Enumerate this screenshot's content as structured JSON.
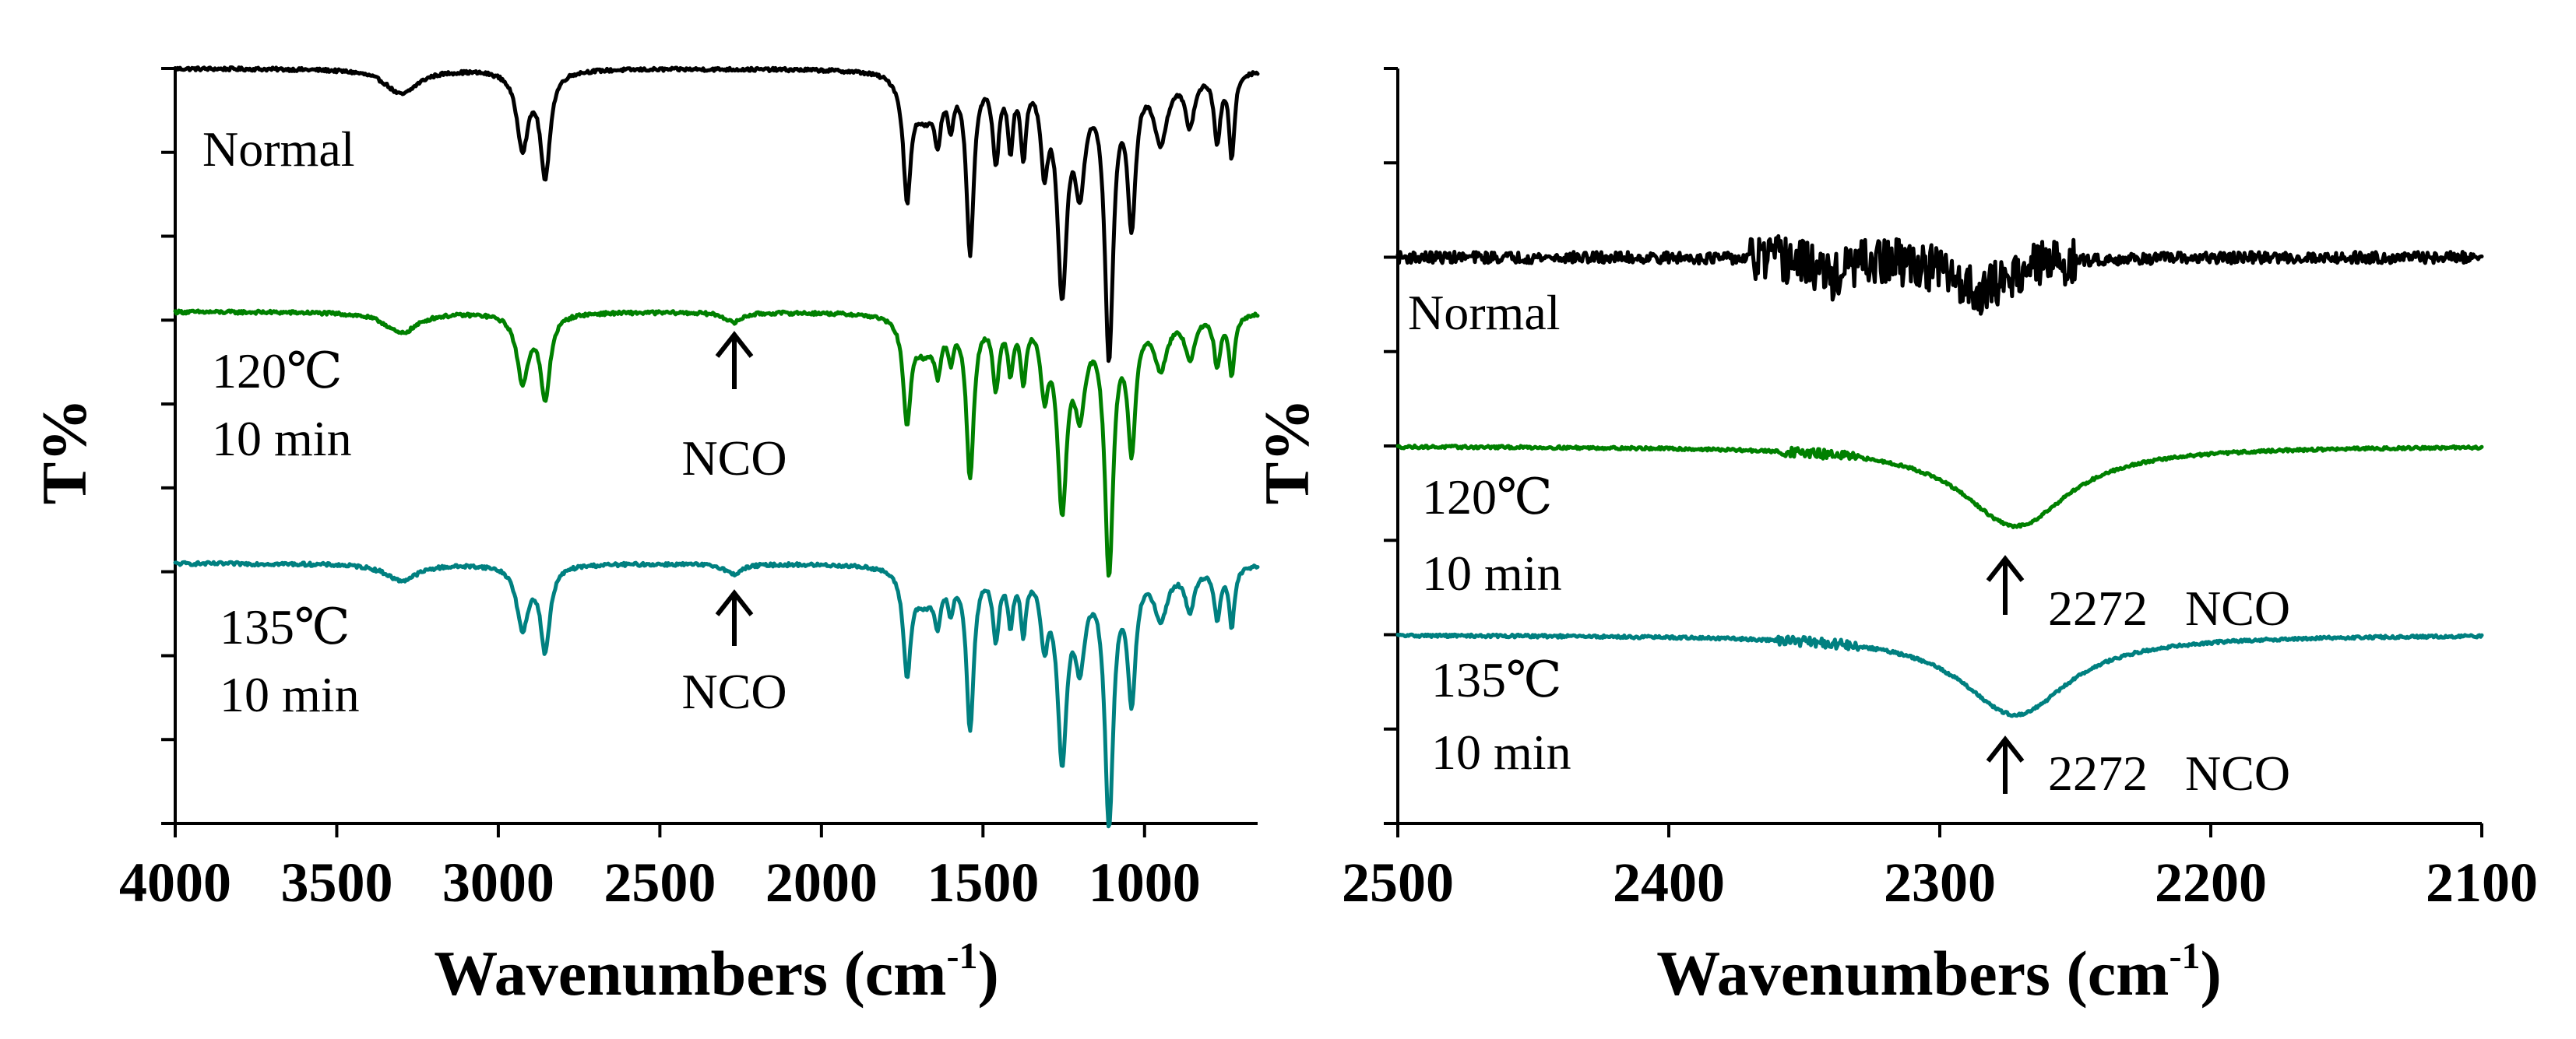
{
  "chart_data": [
    {
      "type": "line",
      "panel": "left",
      "xlabel": "Wavenumbers (cm",
      "xlabel_sup": "-1",
      "xlabel_close": ")",
      "ylabel": "T%",
      "xlim": [
        4000,
        650
      ],
      "x_ticks": [
        4000,
        3500,
        3000,
        2500,
        2000,
        1500,
        1000
      ],
      "x_tick_labels": [
        "4000",
        "3500",
        "3000",
        "2500",
        "2000",
        "1500",
        "1000"
      ],
      "ylim": [
        0,
        9
      ],
      "y_ticks": [
        0,
        1,
        2,
        3,
        4,
        5,
        6,
        7,
        8,
        9
      ],
      "y_tick_labels_shown": false,
      "series": [
        {
          "name": "Normal",
          "label_lines": [
            "Normal"
          ],
          "color": "#000000",
          "baseline": 9.0,
          "bands": [
            {
              "center": 3300,
              "width": 60,
              "depth": 0.3
            },
            {
              "center": 2925,
              "width": 22,
              "depth": 0.9
            },
            {
              "center": 2855,
              "width": 18,
              "depth": 1.25
            },
            {
              "center": 1735,
              "width": 14,
              "depth": 1.4
            },
            {
              "center": 1680,
              "width": 40,
              "depth": 0.5
            },
            {
              "center": 1640,
              "width": 12,
              "depth": 0.6
            },
            {
              "center": 1600,
              "width": 10,
              "depth": 0.5
            },
            {
              "center": 1540,
              "width": 14,
              "depth": 2.1
            },
            {
              "center": 1460,
              "width": 12,
              "depth": 1.0
            },
            {
              "center": 1415,
              "width": 10,
              "depth": 0.8
            },
            {
              "center": 1375,
              "width": 10,
              "depth": 0.9
            },
            {
              "center": 1310,
              "width": 14,
              "depth": 1.0
            },
            {
              "center": 1255,
              "width": 18,
              "depth": 2.5
            },
            {
              "center": 1200,
              "width": 20,
              "depth": 1.2
            },
            {
              "center": 1110,
              "width": 16,
              "depth": 3.3
            },
            {
              "center": 1040,
              "width": 15,
              "depth": 1.7
            },
            {
              "center": 950,
              "width": 25,
              "depth": 0.8
            },
            {
              "center": 860,
              "width": 18,
              "depth": 0.6
            },
            {
              "center": 775,
              "width": 12,
              "depth": 0.8
            },
            {
              "center": 730,
              "width": 10,
              "depth": 1.0
            }
          ]
        },
        {
          "name": "120℃ 10 min",
          "label_lines": [
            "120℃",
            "10 min"
          ],
          "color": "#008000",
          "baseline": 6.1,
          "bands": [
            {
              "center": 3300,
              "width": 60,
              "depth": 0.25
            },
            {
              "center": 2925,
              "width": 22,
              "depth": 0.8
            },
            {
              "center": 2855,
              "width": 18,
              "depth": 1.0
            },
            {
              "center": 2272,
              "width": 30,
              "depth": 0.12
            },
            {
              "center": 1735,
              "width": 14,
              "depth": 1.2
            },
            {
              "center": 1680,
              "width": 40,
              "depth": 0.4
            },
            {
              "center": 1640,
              "width": 12,
              "depth": 0.5
            },
            {
              "center": 1600,
              "width": 10,
              "depth": 0.4
            },
            {
              "center": 1540,
              "width": 14,
              "depth": 1.9
            },
            {
              "center": 1460,
              "width": 12,
              "depth": 0.8
            },
            {
              "center": 1415,
              "width": 10,
              "depth": 0.6
            },
            {
              "center": 1375,
              "width": 10,
              "depth": 0.7
            },
            {
              "center": 1310,
              "width": 14,
              "depth": 0.8
            },
            {
              "center": 1255,
              "width": 18,
              "depth": 2.2
            },
            {
              "center": 1200,
              "width": 20,
              "depth": 1.0
            },
            {
              "center": 1110,
              "width": 16,
              "depth": 3.0
            },
            {
              "center": 1040,
              "width": 15,
              "depth": 1.5
            },
            {
              "center": 950,
              "width": 25,
              "depth": 0.6
            },
            {
              "center": 860,
              "width": 18,
              "depth": 0.5
            },
            {
              "center": 775,
              "width": 12,
              "depth": 0.6
            },
            {
              "center": 730,
              "width": 10,
              "depth": 0.7
            }
          ]
        },
        {
          "name": "135℃ 10 min",
          "label_lines": [
            "135℃",
            "10 min"
          ],
          "color": "#008080",
          "baseline": 3.1,
          "bands": [
            {
              "center": 3300,
              "width": 60,
              "depth": 0.2
            },
            {
              "center": 2925,
              "width": 22,
              "depth": 0.75
            },
            {
              "center": 2855,
              "width": 18,
              "depth": 1.0
            },
            {
              "center": 2272,
              "width": 30,
              "depth": 0.12
            },
            {
              "center": 1735,
              "width": 14,
              "depth": 1.2
            },
            {
              "center": 1680,
              "width": 40,
              "depth": 0.4
            },
            {
              "center": 1640,
              "width": 12,
              "depth": 0.5
            },
            {
              "center": 1600,
              "width": 10,
              "depth": 0.4
            },
            {
              "center": 1540,
              "width": 14,
              "depth": 1.9
            },
            {
              "center": 1460,
              "width": 12,
              "depth": 0.8
            },
            {
              "center": 1415,
              "width": 10,
              "depth": 0.6
            },
            {
              "center": 1375,
              "width": 10,
              "depth": 0.7
            },
            {
              "center": 1310,
              "width": 14,
              "depth": 0.8
            },
            {
              "center": 1255,
              "width": 18,
              "depth": 2.2
            },
            {
              "center": 1200,
              "width": 20,
              "depth": 1.0
            },
            {
              "center": 1110,
              "width": 16,
              "depth": 3.0
            },
            {
              "center": 1040,
              "width": 15,
              "depth": 1.5
            },
            {
              "center": 950,
              "width": 25,
              "depth": 0.6
            },
            {
              "center": 860,
              "width": 18,
              "depth": 0.5
            },
            {
              "center": 775,
              "width": 12,
              "depth": 0.6
            },
            {
              "center": 730,
              "width": 10,
              "depth": 0.7
            }
          ]
        }
      ],
      "annotations": [
        {
          "text": "NCO",
          "x": 2272,
          "series": "120℃ 10 min"
        },
        {
          "text": "NCO",
          "x": 2272,
          "series": "135℃ 10 min"
        }
      ]
    },
    {
      "type": "line",
      "panel": "right",
      "xlabel": "Wavenumbers (cm",
      "xlabel_sup": "-1",
      "xlabel_close": ")",
      "ylabel": "T%",
      "xlim": [
        2500,
        2100
      ],
      "x_ticks": [
        2500,
        2400,
        2300,
        2200,
        2100
      ],
      "x_tick_labels": [
        "2500",
        "2400",
        "2300",
        "2200",
        "2100"
      ],
      "ylim": [
        0,
        8
      ],
      "y_ticks": [
        0,
        1,
        2,
        3,
        4,
        5,
        6,
        7,
        8
      ],
      "y_tick_labels_shown": false,
      "series": [
        {
          "name": "Normal",
          "label_lines": [
            "Normal"
          ],
          "color": "#000000",
          "baseline": 6.0,
          "noise_region": [
            2370,
            2250
          ],
          "noise_amp": 0.25,
          "bands": [
            {
              "center": 2285,
              "width": 12,
              "depth": 0.35
            },
            {
              "center": 2340,
              "width": 6,
              "depth": 0.2
            }
          ]
        },
        {
          "name": "120℃ 10 min",
          "label_lines": [
            "120℃",
            "10 min"
          ],
          "color": "#008000",
          "baseline": 4.0,
          "noise_region": [
            2360,
            2330
          ],
          "noise_amp": 0.05,
          "bands": [
            {
              "center": 2272,
              "width": 24,
              "depth": 0.85
            }
          ]
        },
        {
          "name": "135℃ 10 min",
          "label_lines": [
            "135℃",
            "10 min"
          ],
          "color": "#008080",
          "baseline": 2.0,
          "noise_region": [
            2360,
            2330
          ],
          "noise_amp": 0.05,
          "bands": [
            {
              "center": 2272,
              "width": 24,
              "depth": 0.85
            }
          ]
        }
      ],
      "annotations": [
        {
          "text": "2272   NCO",
          "x": 2272,
          "series": "120℃ 10 min"
        },
        {
          "text": "2272   NCO",
          "x": 2272,
          "series": "135℃ 10 min"
        }
      ]
    }
  ]
}
